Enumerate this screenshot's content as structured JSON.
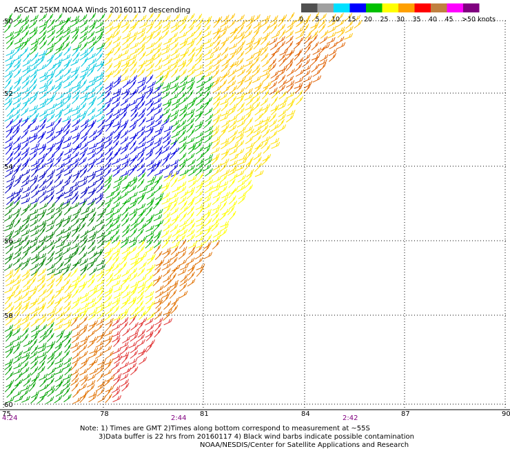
{
  "title": "ASCAT 25KM NOAA Winds 20160117 descending",
  "legend": {
    "labels": [
      "0",
      "5",
      "10",
      "15",
      "20",
      "25",
      "30",
      "35",
      "40",
      "45",
      ">50 knots"
    ],
    "colors": [
      "#505050",
      "#a0a0a0",
      "#00e0ff",
      "#0000ff",
      "#00c000",
      "#ffff00",
      "#ffa000",
      "#ff0000",
      "#c08040",
      "#ff00ff",
      "#800080"
    ]
  },
  "lat_labels": [
    "50",
    "52",
    "54",
    "56",
    "58",
    "60"
  ],
  "lon_labels": [
    "75",
    "78",
    "81",
    "84",
    "87",
    "90"
  ],
  "time_labels": [
    "4:24",
    "2:44",
    "2:42"
  ],
  "notes": {
    "line1": "Note: 1) Times are GMT 2)Times along bottom correspond to measurement at ~55S",
    "line2": "3)Data buffer is 22 hrs from 20160117 4) Black wind barbs indicate possible contamination",
    "line3": "NOAA/NESDIS/Center for Satellite Applications and Research"
  }
}
